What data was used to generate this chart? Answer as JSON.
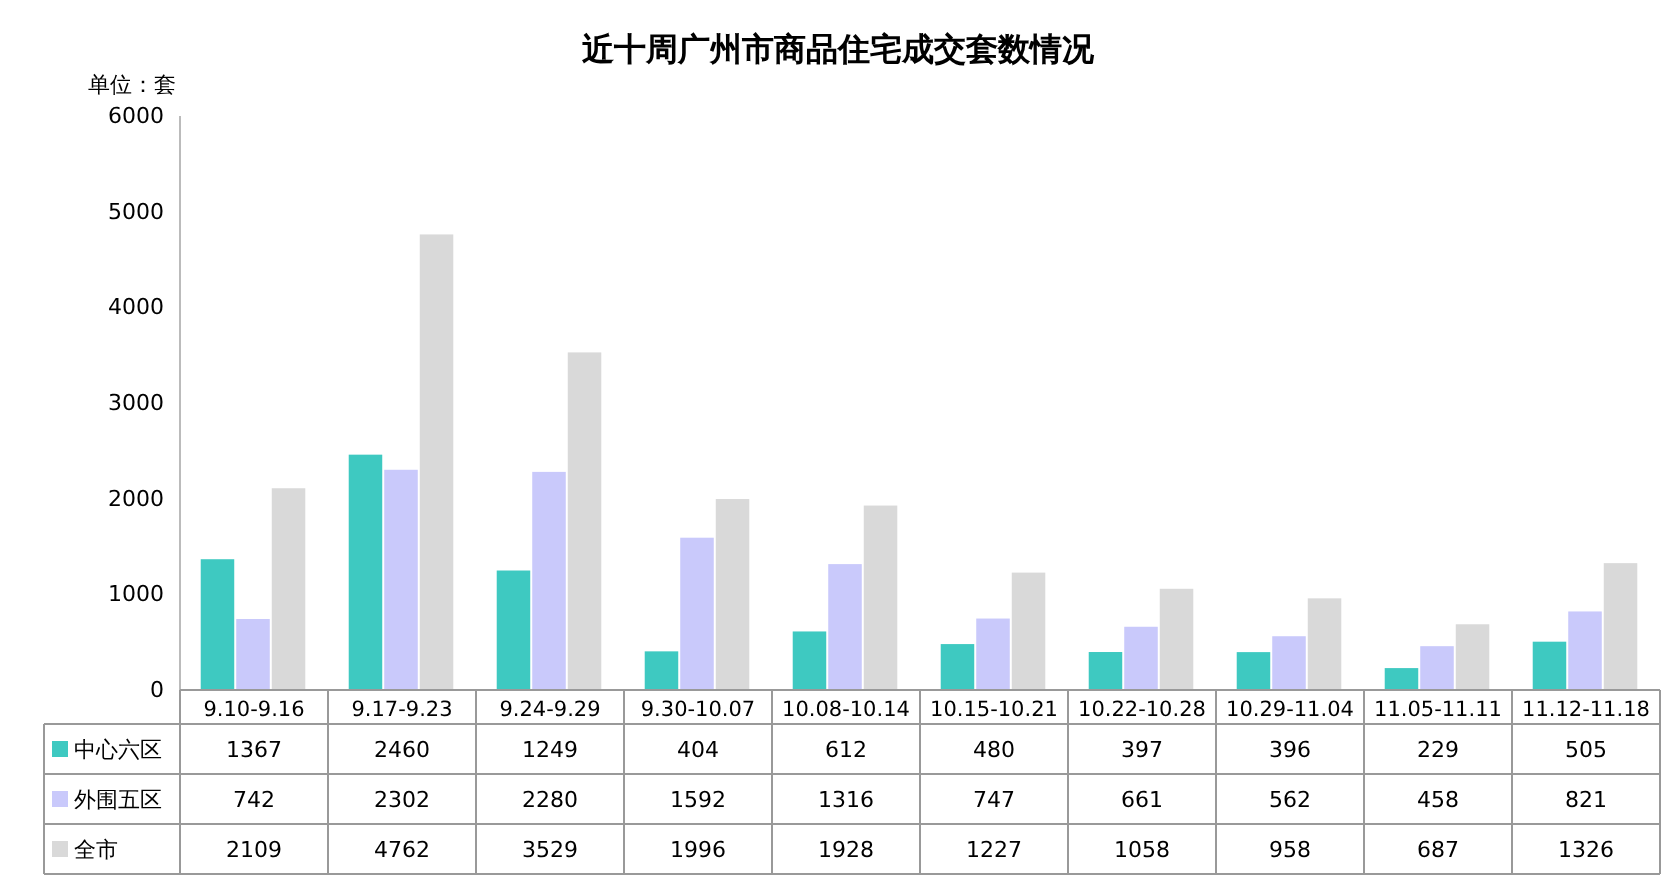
{
  "chart_data": {
    "type": "bar",
    "title": "近十周广州市商品住宅成交套数情况",
    "ylabel": "单位：套",
    "categories": [
      "9.10-9.16",
      "9.17-9.23",
      "9.24-9.29",
      "9.30-10.07",
      "10.08-10.14",
      "10.15-10.21",
      "10.22-10.28",
      "10.29-11.04",
      "11.05-11.11",
      "11.12-11.18"
    ],
    "series": [
      {
        "name": "中心六区",
        "color": "#3ec9c1",
        "values": [
          1367,
          2460,
          1249,
          404,
          612,
          480,
          397,
          396,
          229,
          505
        ]
      },
      {
        "name": "外围五区",
        "color": "#c9c9fb",
        "values": [
          742,
          2302,
          2280,
          1592,
          1316,
          747,
          661,
          562,
          458,
          821
        ]
      },
      {
        "name": "全市",
        "color": "#d9d9d9",
        "values": [
          2109,
          4762,
          3529,
          1996,
          1928,
          1227,
          1058,
          958,
          687,
          1326
        ]
      }
    ],
    "ylim": [
      0,
      6000
    ],
    "yticks": [
      0,
      1000,
      2000,
      3000,
      4000,
      5000,
      6000
    ],
    "grid": false,
    "legend": "bottom",
    "data_labels": true
  }
}
